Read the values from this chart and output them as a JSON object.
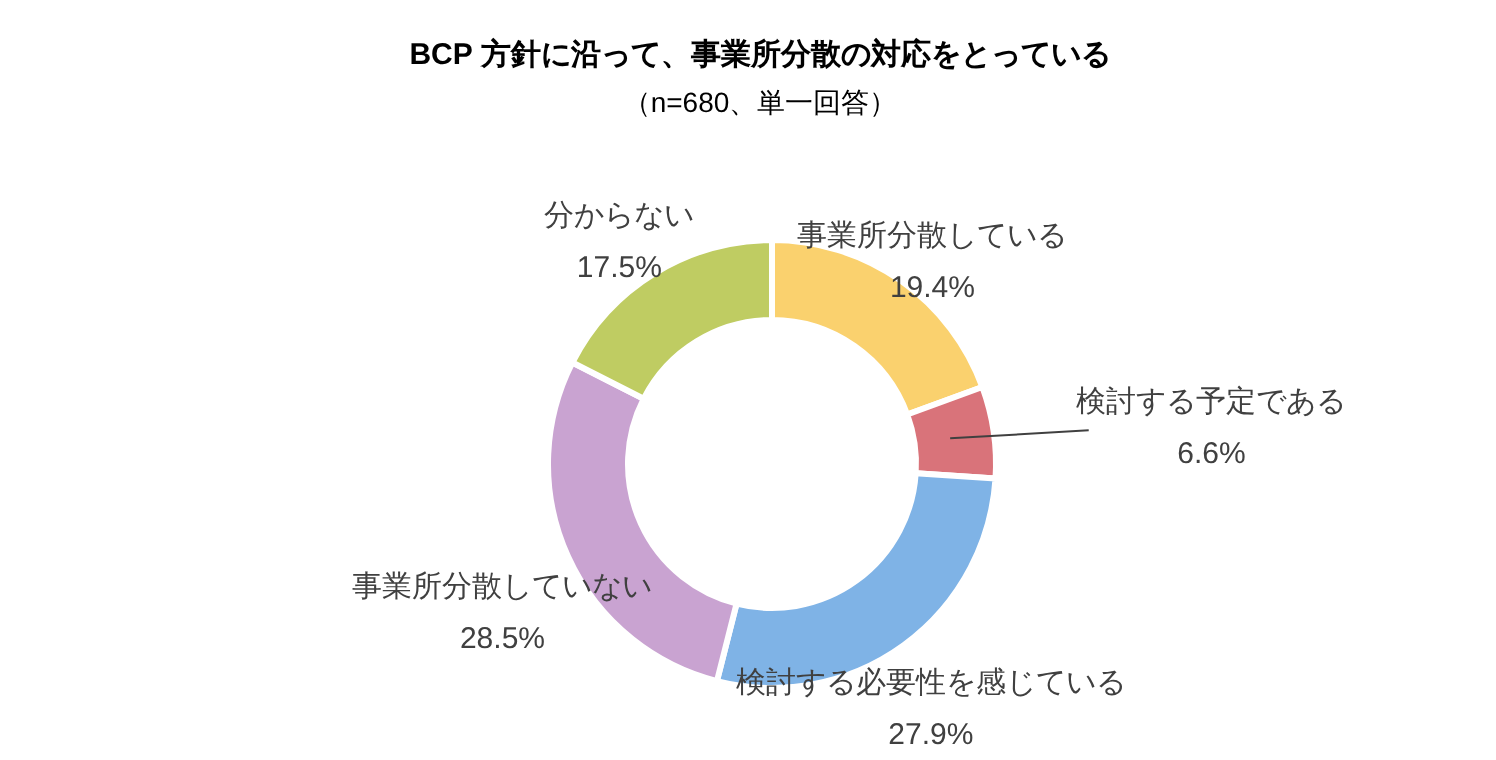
{
  "chart_data": {
    "type": "donut",
    "title": "BCP 方針に沿って、事業所分散の対応をとっている",
    "subtitle": "（n=680、単一回答）",
    "categories": [
      "事業所分散している",
      "検討する予定である",
      "検討する必要性を感じている",
      "事業所分散していない",
      "分からない"
    ],
    "values": [
      19.4,
      6.6,
      27.9,
      28.5,
      17.5
    ],
    "value_labels": [
      "19.4%",
      "6.6%",
      "27.9%",
      "28.5%",
      "17.5%"
    ],
    "colors": [
      "#fad16e",
      "#d9737a",
      "#7fb3e6",
      "#c9a3d1",
      "#bfcc62"
    ]
  }
}
